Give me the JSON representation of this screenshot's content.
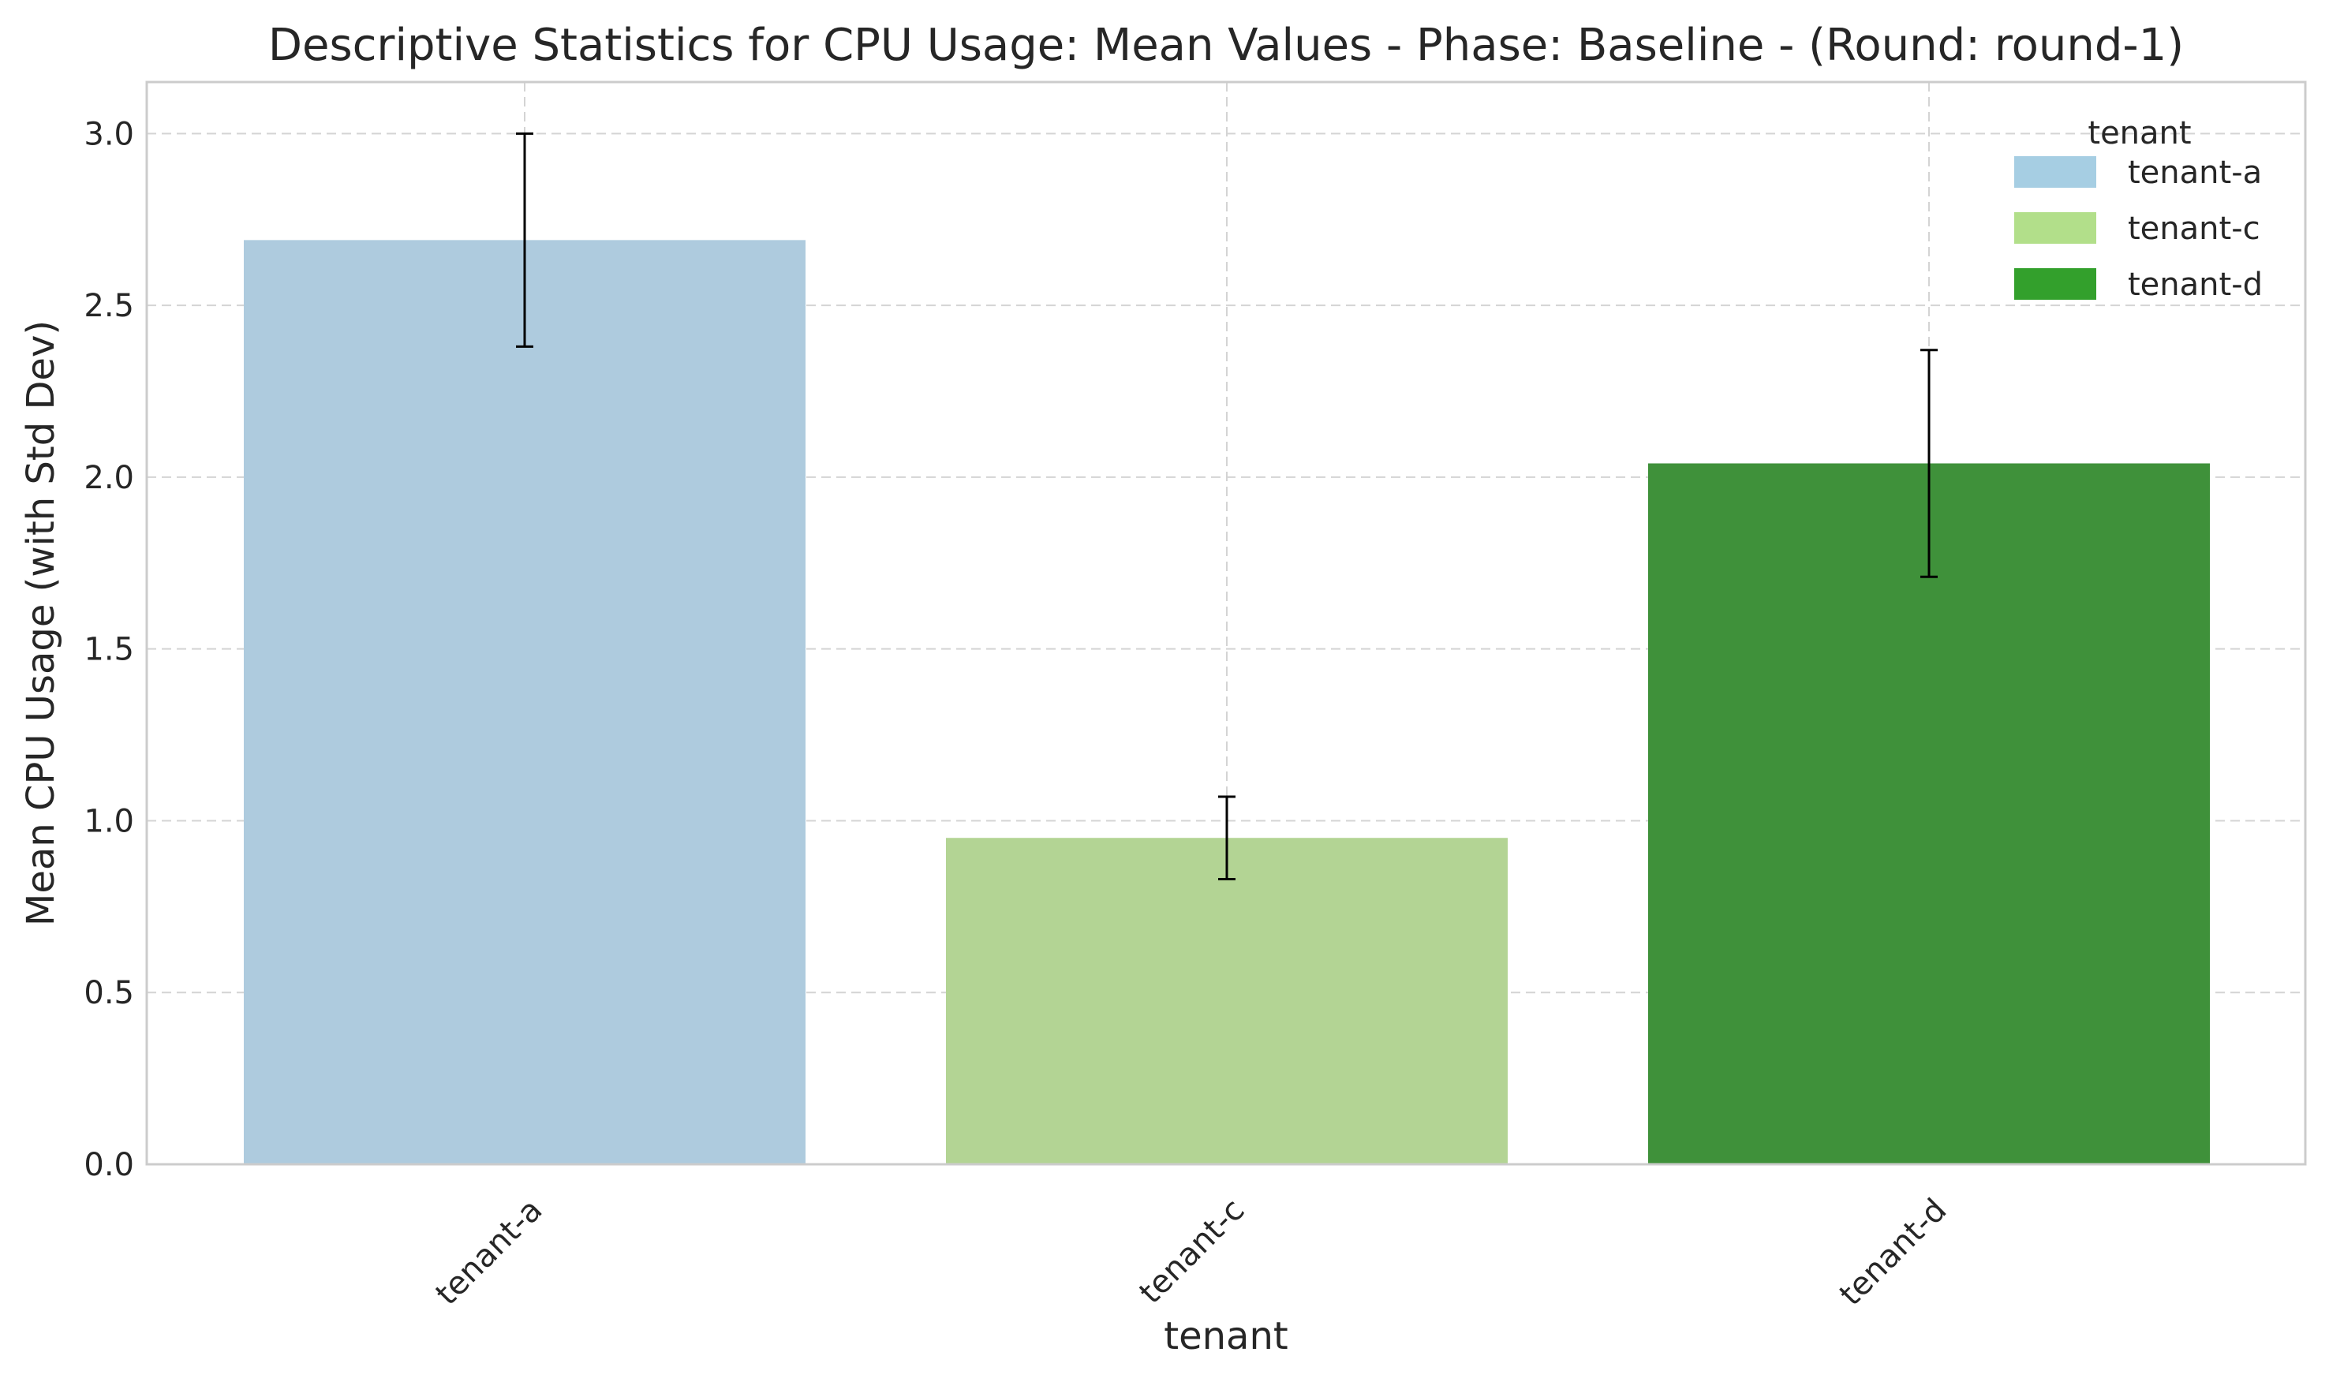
{
  "chart_data": {
    "type": "bar",
    "title": "Descriptive Statistics for CPU Usage: Mean Values - Phase: Baseline - (Round: round-1)",
    "xlabel": "tenant",
    "ylabel": "Mean CPU Usage (with Std Dev)",
    "categories": [
      "tenant-a",
      "tenant-c",
      "tenant-d"
    ],
    "values": [
      2.69,
      0.95,
      2.04
    ],
    "std_dev": [
      0.31,
      0.12,
      0.33
    ],
    "colors": [
      "#aecbde",
      "#b3d494",
      "#3f913a"
    ],
    "legend": {
      "title": "tenant",
      "placement": "top-right",
      "entries": [
        {
          "label": "tenant-a",
          "color": "#a6cee3"
        },
        {
          "label": "tenant-c",
          "color": "#b2df8a"
        },
        {
          "label": "tenant-d",
          "color": "#33a02c"
        }
      ]
    },
    "ylim": [
      0,
      3.15
    ],
    "yticks": [
      "0.0",
      "0.5",
      "1.0",
      "1.5",
      "2.0",
      "2.5",
      "3.0"
    ],
    "grid": true
  }
}
